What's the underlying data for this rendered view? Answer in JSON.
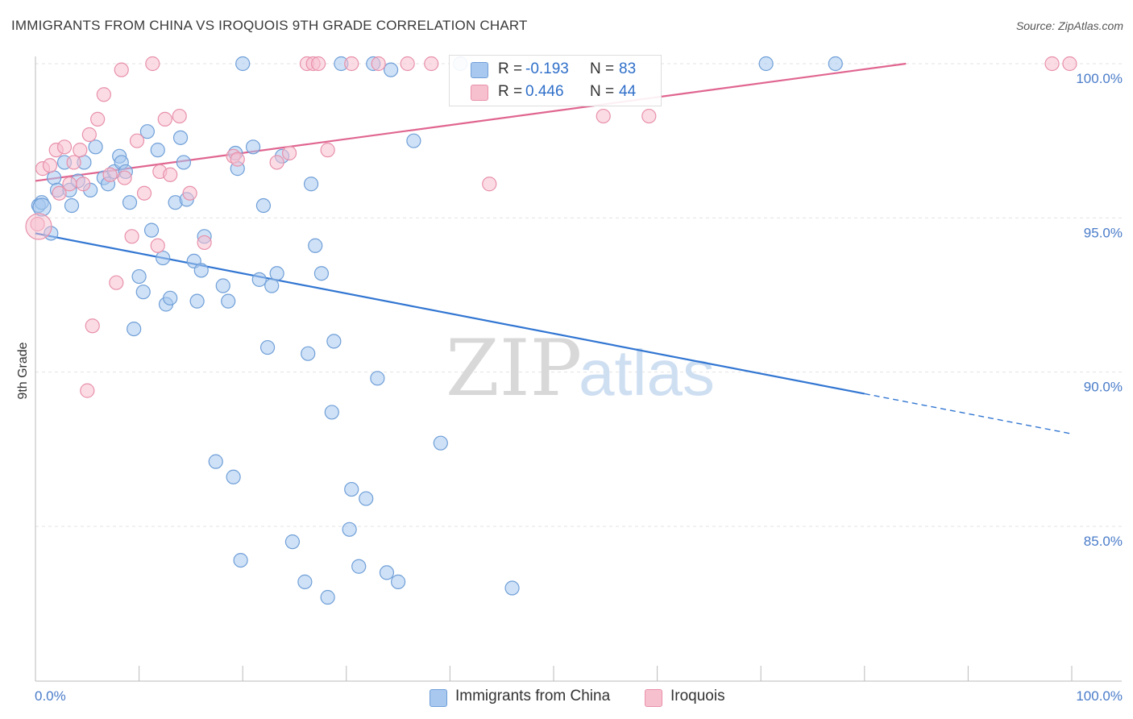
{
  "title": "IMMIGRANTS FROM CHINA VS IROQUOIS 9TH GRADE CORRELATION CHART",
  "source": "Source: ZipAtlas.com",
  "watermark": {
    "part1": "ZIP",
    "part2": "atlas"
  },
  "stats": [
    {
      "r_label": "R =",
      "r_value": "-0.193",
      "n_label": "N =",
      "n_value": "83",
      "color": "#a8c8ef",
      "border": "#6f9fd8"
    },
    {
      "r_label": "R =",
      "r_value": "0.446",
      "n_label": "N =",
      "n_value": "44",
      "color": "#f7c0cf",
      "border": "#e890aa"
    }
  ],
  "legend": [
    {
      "label": "Immigrants from China",
      "color": "#a8c8ef",
      "border": "#6f9fd8"
    },
    {
      "label": "Iroquois",
      "color": "#f7c0cf",
      "border": "#e890aa"
    }
  ],
  "chart_data": {
    "type": "scatter",
    "title": "IMMIGRANTS FROM CHINA VS IROQUOIS 9TH GRADE CORRELATION CHART",
    "xlabel": "",
    "ylabel": "9th Grade",
    "xlim": [
      0,
      100
    ],
    "ylim": [
      80.5,
      100.4
    ],
    "x_tick_labels": [
      "0.0%",
      "100.0%"
    ],
    "y_ticks": [
      85,
      90,
      95,
      100
    ],
    "y_tick_labels": [
      "85.0%",
      "90.0%",
      "95.0%",
      "100.0%"
    ],
    "grid": true,
    "series": [
      {
        "name": "Immigrants from China",
        "color": "#a8c8ef",
        "stroke": "#6f9fd8",
        "trend": {
          "x0": 0,
          "y0": 94.5,
          "x1": 80,
          "y1": 89.3,
          "dash_to": 100,
          "dash_y": 88.0,
          "color": "#3276d2"
        },
        "points": [
          [
            0.3,
            95.4
          ],
          [
            0.6,
            95.5
          ],
          [
            1.5,
            94.5
          ],
          [
            1.8,
            96.3
          ],
          [
            2.1,
            95.9
          ],
          [
            2.8,
            96.8
          ],
          [
            3.3,
            95.9
          ],
          [
            3.5,
            95.4
          ],
          [
            4.1,
            96.2
          ],
          [
            4.7,
            96.8
          ],
          [
            5.3,
            95.9
          ],
          [
            5.8,
            97.3
          ],
          [
            6.6,
            96.3
          ],
          [
            7.0,
            96.1
          ],
          [
            7.6,
            96.5
          ],
          [
            8.1,
            97.0
          ],
          [
            8.3,
            96.8
          ],
          [
            8.7,
            96.5
          ],
          [
            9.1,
            95.5
          ],
          [
            9.5,
            91.4
          ],
          [
            10.0,
            93.1
          ],
          [
            10.4,
            92.6
          ],
          [
            10.8,
            97.8
          ],
          [
            11.2,
            94.6
          ],
          [
            11.8,
            97.2
          ],
          [
            12.3,
            93.7
          ],
          [
            12.6,
            92.2
          ],
          [
            13.0,
            92.4
          ],
          [
            13.5,
            95.5
          ],
          [
            14.0,
            97.6
          ],
          [
            14.3,
            96.8
          ],
          [
            14.6,
            95.6
          ],
          [
            15.3,
            93.6
          ],
          [
            15.6,
            92.3
          ],
          [
            16.0,
            93.3
          ],
          [
            16.3,
            94.4
          ],
          [
            17.4,
            87.1
          ],
          [
            18.1,
            92.8
          ],
          [
            18.6,
            92.3
          ],
          [
            19.1,
            86.6
          ],
          [
            19.3,
            97.1
          ],
          [
            19.5,
            96.6
          ],
          [
            19.8,
            83.9
          ],
          [
            20.0,
            100.0
          ],
          [
            21.0,
            97.3
          ],
          [
            21.6,
            93.0
          ],
          [
            22.0,
            95.4
          ],
          [
            22.4,
            90.8
          ],
          [
            22.8,
            92.8
          ],
          [
            23.3,
            93.2
          ],
          [
            23.8,
            97.0
          ],
          [
            24.8,
            84.5
          ],
          [
            26.0,
            83.2
          ],
          [
            26.3,
            90.6
          ],
          [
            26.6,
            96.1
          ],
          [
            27.0,
            94.1
          ],
          [
            27.6,
            93.2
          ],
          [
            28.2,
            82.7
          ],
          [
            28.6,
            88.7
          ],
          [
            28.8,
            91.0
          ],
          [
            29.5,
            100.0
          ],
          [
            30.3,
            84.9
          ],
          [
            30.5,
            86.2
          ],
          [
            31.2,
            83.7
          ],
          [
            31.9,
            85.9
          ],
          [
            32.6,
            100.0
          ],
          [
            33.0,
            89.8
          ],
          [
            33.9,
            83.5
          ],
          [
            34.3,
            99.8
          ],
          [
            35.0,
            83.2
          ],
          [
            36.5,
            97.5
          ],
          [
            39.1,
            87.7
          ],
          [
            41.0,
            100.0
          ],
          [
            46.0,
            83.0
          ],
          [
            70.5,
            100.0
          ],
          [
            77.2,
            100.0
          ]
        ]
      },
      {
        "name": "Iroquois",
        "color": "#f7c0cf",
        "stroke": "#e890aa",
        "trend": {
          "x0": 0,
          "y0": 96.2,
          "x1": 84,
          "y1": 100.0,
          "color": "#e06590"
        },
        "points": [
          [
            0.2,
            94.8
          ],
          [
            0.7,
            96.6
          ],
          [
            1.4,
            96.7
          ],
          [
            2.0,
            97.2
          ],
          [
            2.3,
            95.8
          ],
          [
            2.8,
            97.3
          ],
          [
            3.3,
            96.1
          ],
          [
            3.7,
            96.8
          ],
          [
            4.3,
            97.2
          ],
          [
            4.6,
            96.1
          ],
          [
            5.0,
            89.4
          ],
          [
            5.2,
            97.7
          ],
          [
            5.5,
            91.5
          ],
          [
            6.0,
            98.2
          ],
          [
            6.6,
            99.0
          ],
          [
            7.2,
            96.4
          ],
          [
            7.8,
            92.9
          ],
          [
            8.3,
            99.8
          ],
          [
            8.6,
            96.3
          ],
          [
            9.3,
            94.4
          ],
          [
            9.8,
            97.5
          ],
          [
            10.5,
            95.8
          ],
          [
            11.3,
            100.0
          ],
          [
            11.8,
            94.1
          ],
          [
            12.0,
            96.5
          ],
          [
            12.5,
            98.2
          ],
          [
            13.0,
            96.4
          ],
          [
            13.9,
            98.3
          ],
          [
            14.9,
            95.8
          ],
          [
            16.3,
            94.2
          ],
          [
            19.1,
            97.0
          ],
          [
            19.5,
            96.9
          ],
          [
            23.3,
            96.8
          ],
          [
            24.5,
            97.1
          ],
          [
            26.2,
            100.0
          ],
          [
            26.8,
            100.0
          ],
          [
            27.3,
            100.0
          ],
          [
            28.2,
            97.2
          ],
          [
            30.5,
            100.0
          ],
          [
            33.1,
            100.0
          ],
          [
            35.9,
            100.0
          ],
          [
            38.2,
            100.0
          ],
          [
            43.8,
            96.1
          ],
          [
            54.8,
            98.3
          ],
          [
            59.2,
            98.3
          ],
          [
            98.1,
            100.0
          ],
          [
            99.8,
            100.0
          ]
        ]
      }
    ]
  }
}
